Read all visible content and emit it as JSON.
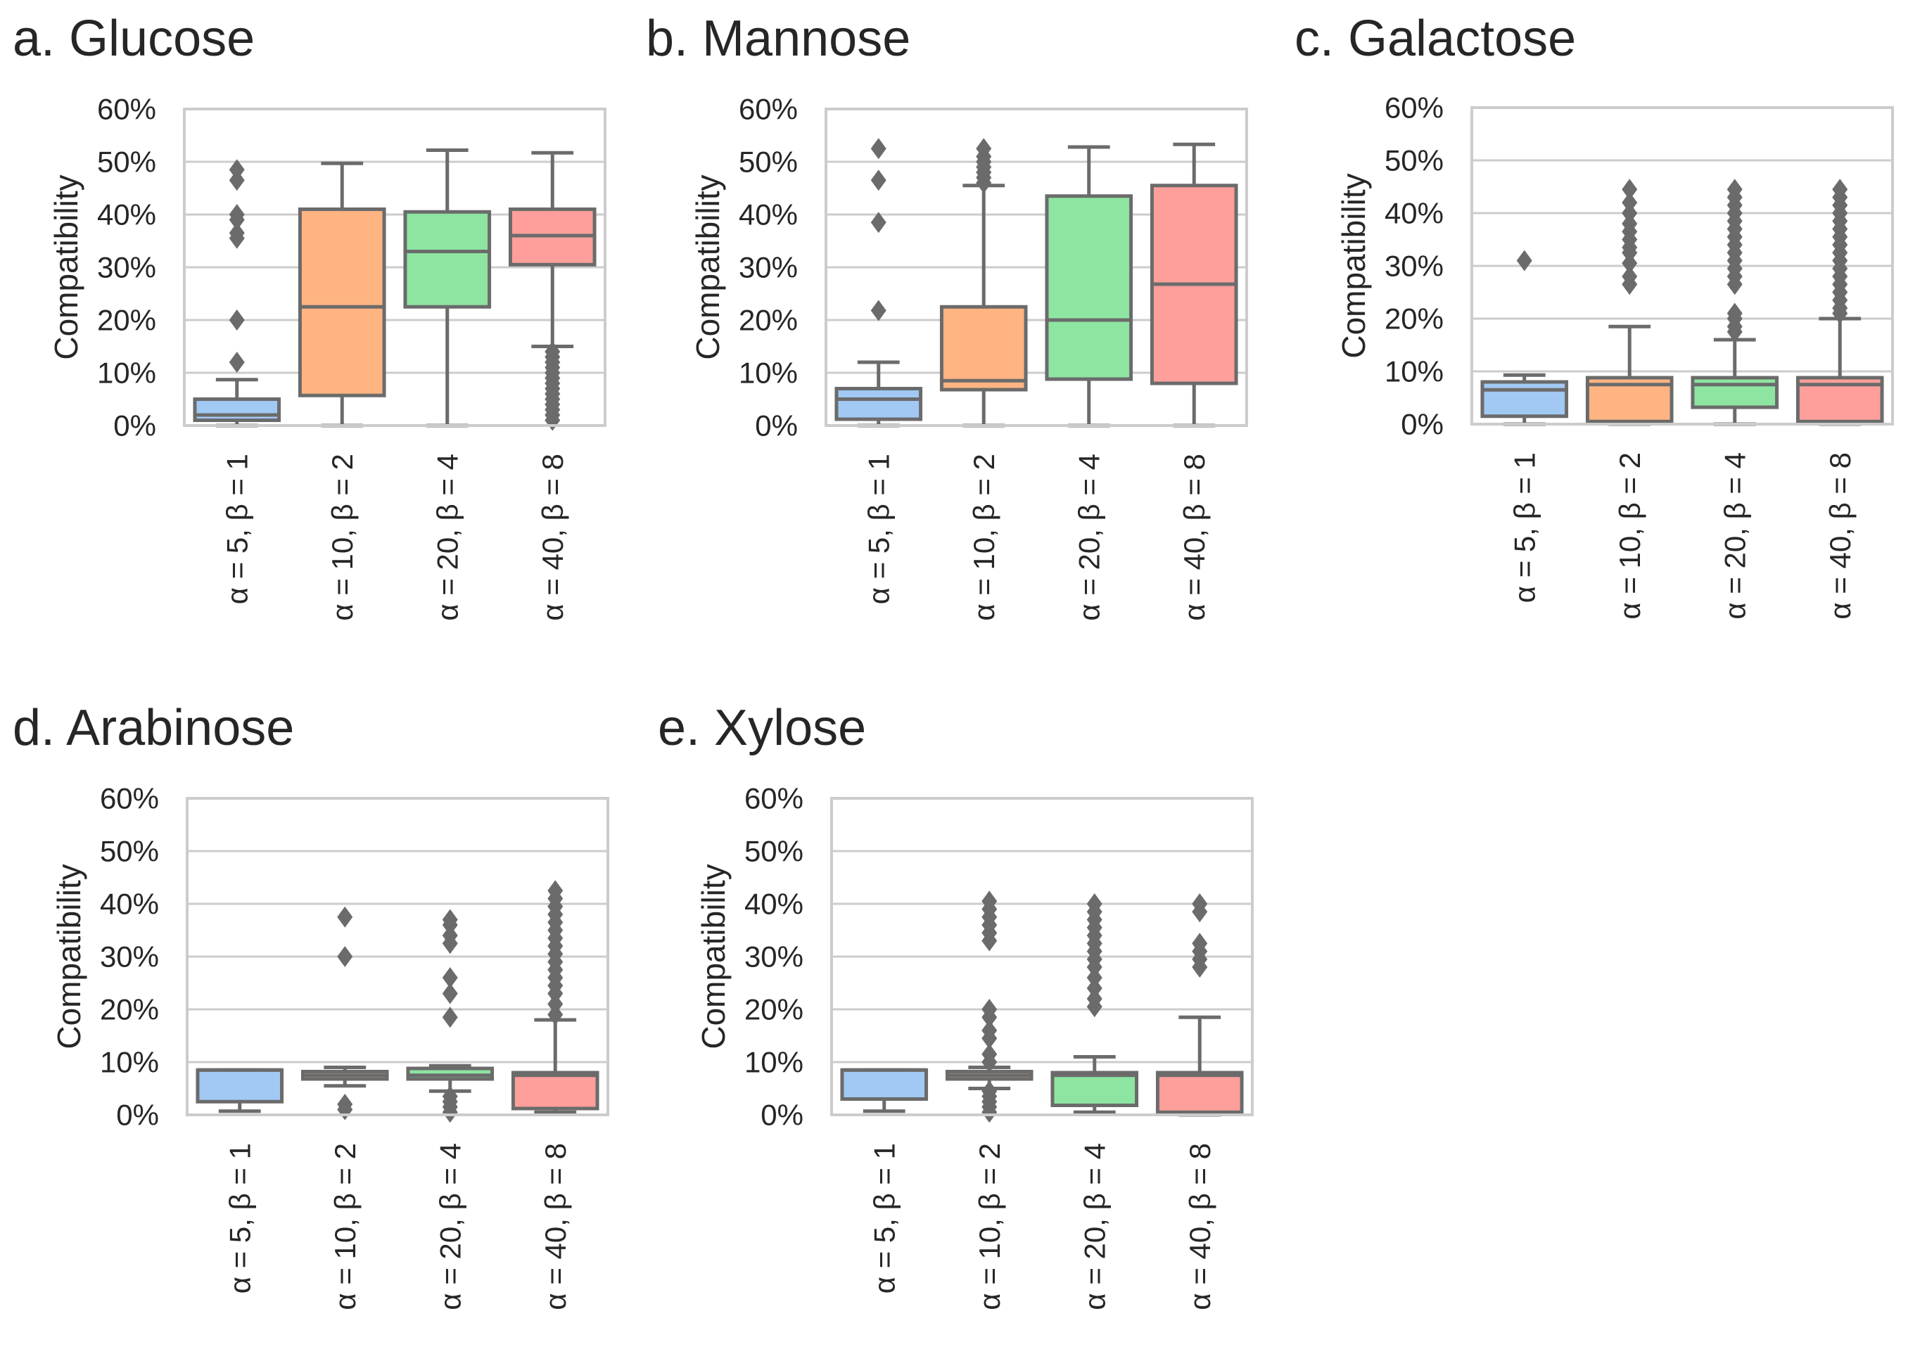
{
  "colors": [
    "#a1c9f4",
    "#ffb482",
    "#8de5a1",
    "#ff9f9b"
  ],
  "chart_data": [
    {
      "type": "box",
      "title": "a. Glucose",
      "ylabel": "Compatibility",
      "ylim": [
        0,
        60
      ],
      "yticks": [
        "0%",
        "10%",
        "20%",
        "30%",
        "40%",
        "50%",
        "60%"
      ],
      "categories": [
        "α = 5, β = 1",
        "α = 10, β = 2",
        "α = 20, β = 4",
        "α = 40, β = 8"
      ],
      "boxes": [
        {
          "whislo": 0,
          "q1": 1,
          "med": 2,
          "q3": 5,
          "whishi": 8.7,
          "fliers": [
            12,
            20,
            35.5,
            36.5,
            39,
            40,
            46.5,
            48.5
          ]
        },
        {
          "whislo": 0,
          "q1": 5.7,
          "med": 22.5,
          "q3": 41,
          "whishi": 49.7,
          "fliers": []
        },
        {
          "whislo": 0,
          "q1": 22.5,
          "med": 33,
          "q3": 40.5,
          "whishi": 52.2,
          "fliers": []
        },
        {
          "whislo": 15,
          "q1": 30.5,
          "med": 36,
          "q3": 41,
          "whishi": 51.7,
          "fliers": [
            1,
            2,
            3,
            4,
            5,
            6,
            7,
            8,
            9,
            10,
            11,
            12,
            13,
            14
          ]
        }
      ]
    },
    {
      "type": "box",
      "title": "b. Mannose",
      "ylabel": "Compatibility",
      "ylim": [
        0,
        60
      ],
      "yticks": [
        "0%",
        "10%",
        "20%",
        "30%",
        "40%",
        "50%",
        "60%"
      ],
      "categories": [
        "α = 5, β = 1",
        "α = 10, β = 2",
        "α = 20, β = 4",
        "α = 40, β = 8"
      ],
      "boxes": [
        {
          "whislo": 0,
          "q1": 1.2,
          "med": 5,
          "q3": 7,
          "whishi": 12,
          "fliers": [
            21.8,
            38.5,
            46.5,
            52.5
          ]
        },
        {
          "whislo": 0,
          "q1": 6.8,
          "med": 8.5,
          "q3": 22.5,
          "whishi": 45.5,
          "fliers": [
            46,
            47,
            48,
            49,
            50,
            51,
            52.5
          ]
        },
        {
          "whislo": 0,
          "q1": 8.8,
          "med": 20,
          "q3": 43.5,
          "whishi": 52.8,
          "fliers": []
        },
        {
          "whislo": 0,
          "q1": 8,
          "med": 26.8,
          "q3": 45.5,
          "whishi": 53.3,
          "fliers": []
        }
      ]
    },
    {
      "type": "box",
      "title": "c. Galactose",
      "ylabel": "Compatibility",
      "ylim": [
        0,
        60
      ],
      "yticks": [
        "0%",
        "10%",
        "20%",
        "30%",
        "40%",
        "50%",
        "60%"
      ],
      "categories": [
        "α = 5, β = 1",
        "α = 10, β = 2",
        "α = 20, β = 4",
        "α = 40, β = 8"
      ],
      "boxes": [
        {
          "whislo": 0,
          "q1": 1.5,
          "med": 6.5,
          "q3": 8,
          "whishi": 9.3,
          "fliers": [
            31
          ]
        },
        {
          "whislo": 0,
          "q1": 0.5,
          "med": 7.5,
          "q3": 8.8,
          "whishi": 18.5,
          "fliers": [
            26.5,
            28,
            30.5,
            32.5,
            33.5,
            35,
            36.5,
            38,
            40,
            42,
            44.5
          ]
        },
        {
          "whislo": 0,
          "q1": 3.2,
          "med": 7.5,
          "q3": 8.8,
          "whishi": 16,
          "fliers": [
            17.5,
            18.5,
            20,
            21,
            26.5,
            28,
            29.5,
            31,
            32.5,
            34,
            35.5,
            37,
            38.5,
            40,
            41.5,
            43,
            44.5
          ]
        },
        {
          "whislo": 0,
          "q1": 0.5,
          "med": 7.5,
          "q3": 8.8,
          "whishi": 20,
          "fliers": [
            21,
            22,
            23.5,
            25,
            26.5,
            28,
            29.5,
            31,
            32.5,
            34,
            35.5,
            37,
            38.5,
            40,
            41.5,
            43,
            44.5
          ]
        }
      ]
    },
    {
      "type": "box",
      "title": "d. Arabinose",
      "ylabel": "Compatibility",
      "ylim": [
        0,
        60
      ],
      "yticks": [
        "0%",
        "10%",
        "20%",
        "30%",
        "40%",
        "50%",
        "60%"
      ],
      "categories": [
        "α = 5, β = 1",
        "α = 10, β = 2",
        "α = 20, β = 4",
        "α = 40, β = 8"
      ],
      "boxes": [
        {
          "whislo": 0.7,
          "q1": 2.5,
          "med": 8.5,
          "q3": 8.5,
          "whishi": 8.5,
          "fliers": []
        },
        {
          "whislo": 5.5,
          "q1": 6.8,
          "med": 7.5,
          "q3": 8.2,
          "whishi": 9,
          "fliers": [
            1,
            2,
            30,
            37.5
          ]
        },
        {
          "whislo": 4.5,
          "q1": 6.8,
          "med": 7.5,
          "q3": 8.8,
          "whishi": 9.3,
          "fliers": [
            0.5,
            1.5,
            2.5,
            3.5,
            18.5,
            23,
            26,
            32.5,
            34,
            36,
            37
          ]
        },
        {
          "whislo": 0.5,
          "q1": 1.2,
          "med": 7.5,
          "q3": 8,
          "whishi": 18,
          "fliers": [
            19,
            21,
            23,
            24.5,
            26,
            27.5,
            29,
            30.5,
            32,
            33.5,
            35,
            36.5,
            38,
            39.5,
            41,
            42.5
          ]
        }
      ]
    },
    {
      "type": "box",
      "title": "e. Xylose",
      "ylabel": "Compatibility",
      "ylim": [
        0,
        60
      ],
      "yticks": [
        "0%",
        "10%",
        "20%",
        "30%",
        "40%",
        "50%",
        "60%"
      ],
      "categories": [
        "α = 5, β = 1",
        "α = 10, β = 2",
        "α = 20, β = 4",
        "α = 40, β = 8"
      ],
      "boxes": [
        {
          "whislo": 0.7,
          "q1": 3,
          "med": 8.5,
          "q3": 8.5,
          "whishi": 8.5,
          "fliers": []
        },
        {
          "whislo": 5,
          "q1": 6.8,
          "med": 7.5,
          "q3": 8.2,
          "whishi": 9,
          "fliers": [
            0.5,
            1.5,
            2.5,
            3.5,
            4.5,
            10,
            11.5,
            14.5,
            16,
            18.5,
            20,
            33,
            34.5,
            36,
            37.5,
            39,
            40.5
          ]
        },
        {
          "whislo": 0.5,
          "q1": 1.8,
          "med": 7.5,
          "q3": 8,
          "whishi": 11,
          "fliers": [
            20.5,
            22,
            24,
            26,
            28,
            29.5,
            31,
            32.5,
            34,
            35.5,
            37,
            38.5,
            40
          ]
        },
        {
          "whislo": 0,
          "q1": 0.5,
          "med": 7.5,
          "q3": 8,
          "whishi": 18.5,
          "fliers": [
            28,
            29.5,
            31,
            32.5,
            38.5,
            40
          ]
        }
      ]
    }
  ]
}
